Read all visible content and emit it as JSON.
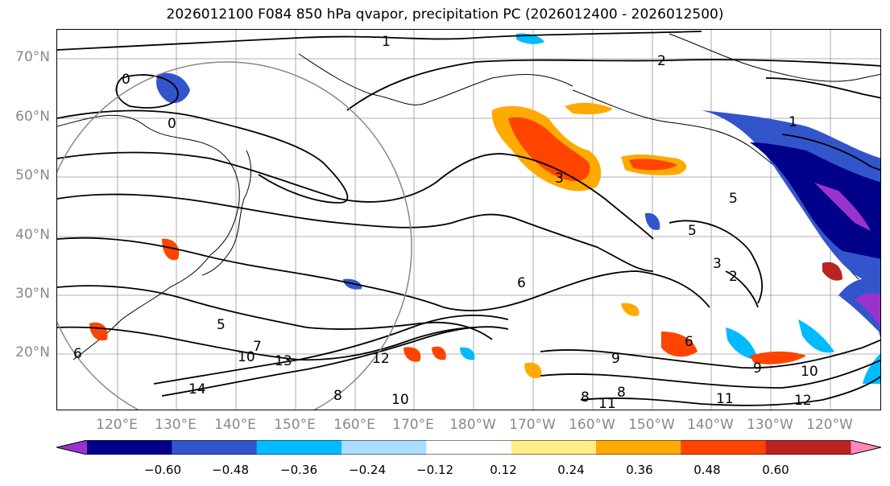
{
  "title": "2026012100 F084 850 hPa qvapor, precipitation PC (2026012400 - 2026012500)",
  "lat_labels": [
    "70°N",
    "60°N",
    "50°N",
    "40°N",
    "30°N",
    "20°N"
  ],
  "lon_labels": [
    "120°E",
    "130°E",
    "140°E",
    "150°E",
    "160°E",
    "170°E",
    "180°W",
    "170°W",
    "160°W",
    "150°W",
    "140°W",
    "130°W",
    "120°W"
  ],
  "contour_labels": [
    "1",
    "2",
    "0",
    "0",
    "3",
    "1",
    "5",
    "5",
    "3",
    "2",
    "6",
    "5",
    "10",
    "13",
    "12",
    "14",
    "8",
    "10",
    "9",
    "10",
    "11",
    "12",
    "6",
    "7",
    "9",
    "8",
    "11",
    "6",
    "8"
  ],
  "colorbar": {
    "colors": [
      "#9933cc",
      "#000088",
      "#3355cc",
      "#00bbff",
      "#aaddff",
      "#ffffff",
      "#ffee88",
      "#ffaa00",
      "#ff4400",
      "#bb2222",
      "#ff88bb"
    ],
    "ticks": [
      "−0.60",
      "−0.48",
      "−0.36",
      "−0.24",
      "−0.12",
      "0.12",
      "0.24",
      "0.36",
      "0.48",
      "0.60"
    ]
  },
  "fill_colors": {
    "strong_negative": "#000088",
    "negative": "#3355cc",
    "weak_negative": "#00bbff",
    "purple": "#9933cc",
    "positive": "#ffaa00",
    "strong_positive": "#ff4400",
    "dark_positive": "#bb2222"
  }
}
